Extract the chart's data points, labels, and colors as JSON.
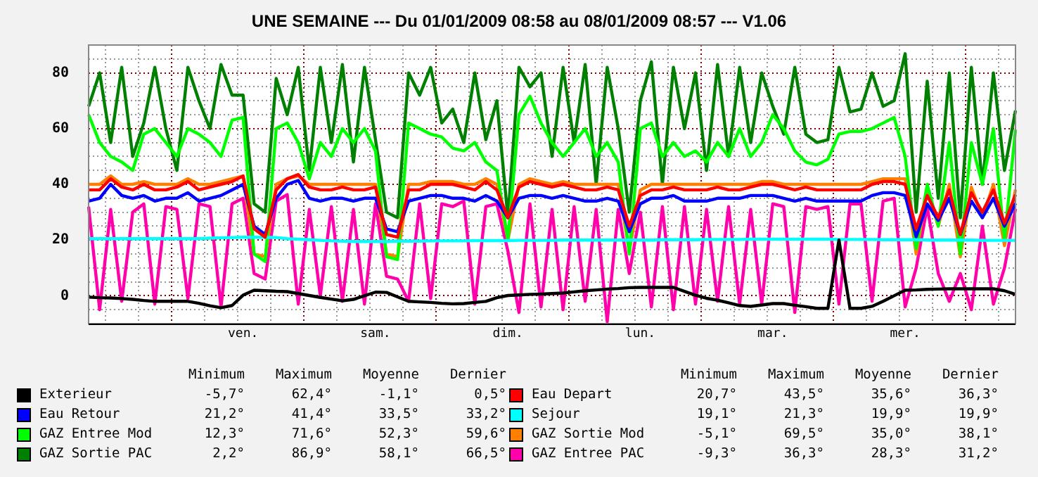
{
  "chart_data": {
    "type": "line",
    "title": "UNE SEMAINE --- Du 01/01/2009 08:58 au 08/01/2009 08:57 --- V1.06",
    "categories": [
      null,
      null,
      null,
      null,
      null,
      null,
      null,
      null,
      null,
      null,
      null,
      null,
      null,
      null,
      "ven.",
      null,
      null,
      null,
      null,
      null,
      null,
      null,
      null,
      null,
      null,
      null,
      "sam.",
      null,
      null,
      null,
      null,
      null,
      null,
      null,
      null,
      null,
      null,
      null,
      "dim.",
      null,
      null,
      null,
      null,
      null,
      null,
      null,
      null,
      null,
      null,
      null,
      "lun.",
      null,
      null,
      null,
      null,
      null,
      null,
      null,
      null,
      null,
      null,
      null,
      "mar.",
      null,
      null,
      null,
      null,
      null,
      null,
      null,
      null,
      null,
      null,
      null,
      "mer.",
      null,
      null,
      null,
      null,
      null,
      null,
      null,
      null,
      null,
      null
    ],
    "ylim": [
      -10,
      90
    ],
    "yticks": [
      {
        "value": -5,
        "label": null
      },
      0,
      {
        "value": 5,
        "label": null
      },
      {
        "value": 10,
        "label": null
      },
      {
        "value": 15,
        "label": null
      },
      20,
      {
        "value": 25,
        "label": null
      },
      {
        "value": 30,
        "label": null
      },
      {
        "value": 35,
        "label": null
      },
      40,
      {
        "value": 45,
        "label": null
      },
      {
        "value": 50,
        "label": null
      },
      {
        "value": 55,
        "label": null
      },
      60,
      {
        "value": 65,
        "label": null
      },
      {
        "value": 70,
        "label": null
      },
      {
        "value": 75,
        "label": null
      },
      80,
      {
        "value": 85,
        "label": null
      }
    ],
    "grid": true,
    "legend": "bottom",
    "marker": "none",
    "line_style": "solid",
    "annotations": [
      "Minimum",
      "Maximum",
      "Moyenne",
      "Dernier",
      "Minimum",
      "Maximum",
      "Moyenne",
      "Dernier",
      "-5,7°",
      "62,4°",
      "-1,1°",
      "0,5°",
      "20,7°",
      "43,5°",
      "35,6°",
      "36,3°",
      "21,2°",
      "41,4°",
      "33,5°",
      "33,2°",
      "19,1°",
      "21,3°",
      "19,9°",
      "19,9°",
      "12,3°",
      "71,6°",
      "52,3°",
      "59,6°",
      "-5,1°",
      "69,5°",
      "35,0°",
      "38,1°",
      "2,2°",
      "86,9°",
      "58,1°",
      "66,5°",
      "-9,3°",
      "36,3°",
      "28,3°",
      "31,2°"
    ],
    "series": [
      {
        "name": "Exterieur",
        "color": "#000000",
        "values": [
          -0.5,
          -0.7,
          -0.8,
          -1,
          -1.3,
          -1.7,
          -2,
          -2,
          -2,
          -2,
          -2.7,
          -3.6,
          -4.3,
          -3.5,
          0.2,
          2,
          1.8,
          1.6,
          1.5,
          0.8,
          0.1,
          -0.6,
          -1.2,
          -1.8,
          -1.3,
          0,
          1.3,
          1.2,
          -0.4,
          -2,
          -2.2,
          -2.4,
          -2.7,
          -2.9,
          -2.8,
          -2.4,
          -2,
          -0.7,
          0.1,
          0.3,
          0.5,
          0.6,
          0.8,
          1,
          1.4,
          1.8,
          2.1,
          2.4,
          2.6,
          2.9,
          3,
          3,
          3,
          3,
          1.6,
          0.2,
          -0.9,
          -1.6,
          -2.5,
          -3.5,
          -3.8,
          -3.3,
          -2.8,
          -2.8,
          -3.4,
          -3.9,
          -4.5,
          -4.5,
          20,
          -4.5,
          -4.5,
          -3.8,
          -2,
          0,
          2,
          2.1,
          2.3,
          2.4,
          2.5,
          2.5,
          2.5,
          2.5,
          2.5,
          1.8,
          0.5
        ]
      },
      {
        "name": "Eau Depart",
        "color": "#ff0000",
        "values": [
          38,
          38,
          42,
          39,
          38,
          40,
          38,
          38,
          39,
          41,
          38,
          39,
          40,
          41,
          43,
          24,
          21,
          38,
          42,
          43.5,
          39,
          38,
          38,
          39,
          38,
          38,
          39,
          22,
          21,
          38,
          38,
          40,
          40,
          40,
          39,
          38,
          41,
          38,
          28,
          39,
          41,
          40,
          39,
          40,
          39,
          38,
          38,
          39,
          38,
          25,
          36,
          38,
          38,
          39,
          38,
          38,
          38,
          39,
          38,
          38,
          39,
          40,
          40,
          39,
          38,
          39,
          38,
          38,
          38,
          38,
          38,
          40,
          41,
          41,
          40,
          24,
          36,
          28,
          38,
          22,
          37,
          30,
          38,
          26,
          36.3
        ]
      },
      {
        "name": "Eau Retour",
        "color": "#0000ff",
        "values": [
          34,
          35,
          40,
          36,
          35,
          36,
          34,
          35,
          35,
          37,
          34,
          35,
          36,
          38,
          40,
          25,
          22,
          35,
          40,
          41.4,
          35,
          34,
          35,
          35,
          34,
          35,
          35,
          24,
          23,
          34,
          35,
          36,
          36,
          35,
          35,
          34,
          36,
          34,
          28,
          35,
          36,
          36,
          35,
          36,
          35,
          34,
          34,
          35,
          34,
          23,
          33,
          35,
          35,
          36,
          34,
          34,
          34,
          35,
          35,
          35,
          36,
          36,
          36,
          35,
          34,
          35,
          34,
          34,
          34,
          34,
          34,
          36,
          37,
          37,
          36,
          21.2,
          33,
          27,
          35,
          22,
          34,
          28,
          35,
          25,
          33.2
        ]
      },
      {
        "name": "Sejour",
        "color": "#00ffff",
        "values": [
          20.5,
          20.5,
          20.5,
          20.5,
          20.5,
          20.5,
          20.5,
          20.5,
          20.5,
          20.5,
          20.5,
          20.7,
          20.8,
          20.9,
          21,
          21,
          21,
          20.9,
          20.5,
          20.3,
          20.1,
          19.9,
          19.7,
          19.6,
          19.5,
          19.5,
          19.5,
          19.5,
          19.6,
          19.6,
          19.6,
          19.7,
          19.7,
          19.7,
          19.7,
          19.8,
          19.8,
          19.8,
          19.8,
          19.9,
          19.9,
          19.9,
          19.9,
          20,
          20,
          20,
          20,
          20,
          20,
          20,
          20,
          20,
          20.1,
          20.1,
          20.1,
          20.1,
          20.2,
          20.2,
          20.2,
          20.2,
          20.3,
          20.3,
          20.3,
          20.3,
          20.3,
          20.3,
          20.3,
          20.3,
          20.2,
          20.2,
          20.2,
          20.2,
          20.1,
          20.1,
          20.1,
          20.1,
          20,
          20,
          20,
          20,
          20,
          19.9,
          19.9,
          19.9,
          19.9
        ]
      },
      {
        "name": "GAZ Entree Mod",
        "color": "#00ff00",
        "values": [
          65,
          55,
          50,
          48,
          45,
          58,
          60,
          55,
          50,
          60,
          58,
          55,
          50,
          63,
          64,
          15,
          12.3,
          60,
          62,
          55,
          42,
          55,
          50,
          60,
          55,
          60,
          52,
          14,
          13,
          62,
          60,
          58,
          57,
          53,
          52,
          55,
          48,
          45,
          20,
          65,
          71.6,
          62,
          55,
          50,
          55,
          60,
          50,
          55,
          48,
          15,
          60,
          62,
          50,
          55,
          50,
          52,
          48,
          55,
          50,
          60,
          50,
          55,
          65,
          60,
          52,
          48,
          47,
          49,
          58,
          59,
          59,
          60,
          62,
          64,
          50,
          17,
          40,
          25,
          55,
          15,
          55,
          40,
          60,
          20,
          59.6
        ]
      },
      {
        "name": "GAZ Sortie Mod",
        "color": "#ff8000",
        "values": [
          40,
          40,
          43,
          40,
          40,
          41,
          40,
          40,
          40,
          42,
          40,
          40,
          41,
          42,
          43,
          15,
          14,
          40,
          42,
          43,
          40,
          40,
          40,
          40,
          40,
          40,
          40,
          15,
          14,
          40,
          40,
          41,
          41,
          41,
          40,
          40,
          42,
          40,
          20,
          40,
          42,
          41,
          40,
          41,
          40,
          40,
          40,
          40,
          40,
          16,
          38,
          40,
          40,
          40,
          40,
          40,
          40,
          40,
          40,
          40,
          40,
          41,
          41,
          40,
          40,
          40,
          40,
          40,
          40,
          40,
          40,
          41,
          42,
          42,
          42,
          15,
          38,
          25,
          40,
          14,
          39,
          28,
          40,
          18,
          38.1
        ]
      },
      {
        "name": "GAZ Sortie PAC",
        "color": "#008000",
        "values": [
          68,
          80,
          55,
          82,
          50,
          62,
          82,
          60,
          45,
          82,
          70,
          60,
          83,
          72,
          72,
          33,
          30,
          78,
          65,
          82,
          45,
          82,
          55,
          83,
          48,
          82,
          56,
          30,
          28,
          80,
          72,
          82,
          62,
          67,
          55,
          80,
          56,
          70,
          28,
          82,
          75,
          80,
          50,
          82,
          55,
          83,
          40,
          82,
          60,
          30,
          70,
          84,
          40,
          82,
          60,
          80,
          45,
          83,
          50,
          82,
          55,
          80,
          68,
          58,
          82,
          58,
          55,
          56,
          82,
          66,
          67,
          80,
          68,
          70,
          86.9,
          30,
          77,
          35,
          80,
          28,
          82,
          40,
          80,
          45,
          66.5
        ]
      },
      {
        "name": "GAZ Entree PAC",
        "color": "#ff00aa",
        "values": [
          32,
          -5,
          31,
          -2,
          30,
          33,
          -3,
          32,
          31,
          -1,
          33,
          32,
          -4,
          33,
          35,
          8,
          6,
          34,
          36.3,
          -3,
          31,
          0,
          32,
          -2,
          31,
          -3,
          33,
          7,
          6,
          -2,
          33,
          -1,
          33,
          32,
          34,
          -3,
          32,
          33,
          16,
          -6,
          33,
          -4,
          31,
          -5,
          32,
          -2,
          31,
          -9.3,
          31,
          8,
          30,
          -4,
          32,
          -5,
          32,
          -3,
          31,
          -2,
          32,
          -3,
          31,
          -3,
          33,
          32,
          -6,
          32,
          31,
          32,
          -3,
          33,
          33,
          -2,
          34,
          35,
          -4,
          10,
          32,
          8,
          -2,
          8,
          -5,
          25,
          -3,
          10,
          31.2
        ]
      }
    ]
  }
}
